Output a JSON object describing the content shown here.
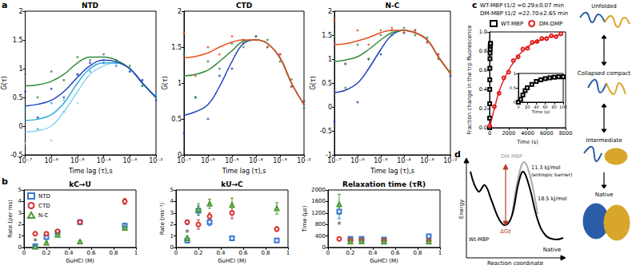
{
  "chart_data": [
    {
      "type": "line",
      "title": "NTD",
      "x_label": "Time lag (τ),s",
      "y_label": "G(τ)",
      "log": "x",
      "x": [
        1e-07,
        3e-07,
        1e-06,
        3e-06,
        1e-05,
        3e-05,
        0.0001,
        0.0003,
        0.001,
        0.003,
        0.01
      ],
      "xlim": [
        1e-07,
        0.01
      ],
      "xticks": [
        {
          "value": 1e-07,
          "label": "10⁻⁷"
        },
        {
          "value": 1e-06,
          "label": "10⁻⁶"
        },
        {
          "value": 1e-05,
          "label": "10⁻⁵"
        },
        {
          "value": 0.0001,
          "label": "10⁻⁴"
        },
        {
          "value": 0.001,
          "label": "10⁻³"
        },
        {
          "value": 0.01,
          "label": "10⁻²"
        }
      ],
      "ylim": [
        -0.5,
        2
      ],
      "yticks": [
        -0.5,
        0,
        0.5,
        1,
        1.5,
        2
      ],
      "vlines": [
        1e-05,
        0.001
      ],
      "series": [
        {
          "color": "#8fd3f0",
          "marker": "dot",
          "values": [
            -0.3,
            0.15,
            -0.25,
            0.45,
            0.4,
            1.0,
            1.1,
            1.05,
            0.95,
            0.8,
            0.45
          ],
          "fit": [
            -0.1,
            -0.08,
            0.0,
            0.25,
            0.6,
            0.9,
            1.05,
            1.1,
            1.0,
            0.75,
            0.5
          ]
        },
        {
          "color": "#2fa9dc",
          "marker": "dot",
          "values": [
            0.3,
            -0.05,
            0.4,
            0.25,
            0.9,
            0.95,
            1.15,
            1.05,
            1.0,
            0.7,
            0.55
          ],
          "fit": [
            0.1,
            0.12,
            0.2,
            0.4,
            0.75,
            1.0,
            1.1,
            1.1,
            1.0,
            0.75,
            0.5
          ]
        },
        {
          "color": "#2e8b3a",
          "marker": "dot",
          "values": [
            0.9,
            0.5,
            0.95,
            0.8,
            1.2,
            1.15,
            1.25,
            1.1,
            1.05,
            0.7,
            0.5
          ],
          "fit": [
            0.7,
            0.72,
            0.78,
            0.9,
            1.1,
            1.2,
            1.2,
            1.15,
            1.0,
            0.75,
            0.5
          ]
        },
        {
          "color": "#1f3fbf",
          "marker": "dot",
          "values": [
            0.6,
            0.15,
            0.65,
            0.5,
            0.9,
            1.1,
            1.1,
            1.15,
            0.95,
            0.8,
            0.45
          ],
          "fit": [
            0.35,
            0.38,
            0.45,
            0.6,
            0.85,
            1.05,
            1.15,
            1.12,
            1.0,
            0.75,
            0.5
          ]
        }
      ]
    },
    {
      "type": "line",
      "title": "CTD",
      "x_label": "Time lag (τ),s",
      "y_label": "G(τ)",
      "log": "x",
      "x": [
        1e-07,
        3e-07,
        1e-06,
        3e-06,
        1e-05,
        3e-05,
        0.0001,
        0.0003,
        0.001,
        0.003,
        0.01
      ],
      "xlim": [
        1e-07,
        0.01
      ],
      "xticks": [
        {
          "value": 1e-07,
          "label": "10⁻⁷"
        },
        {
          "value": 1e-06,
          "label": "10⁻⁶"
        },
        {
          "value": 1e-05,
          "label": "10⁻⁵"
        },
        {
          "value": 0.0001,
          "label": "10⁻⁴"
        },
        {
          "value": 0.001,
          "label": "10⁻³"
        },
        {
          "value": 0.01,
          "label": "10⁻²"
        }
      ],
      "ylim": [
        0,
        2
      ],
      "yticks": [
        0,
        0.5,
        1,
        1.5,
        2
      ],
      "vlines": [
        1e-05,
        0.001
      ],
      "series": [
        {
          "color": "#1f3fbf",
          "marker": "dot",
          "values": [
            0.3,
            0.8,
            0.5,
            1.1,
            1.2,
            1.6,
            1.65,
            1.5,
            1.4,
            0.95,
            0.75
          ],
          "fit": [
            0.55,
            0.6,
            0.7,
            0.95,
            1.3,
            1.55,
            1.6,
            1.55,
            1.35,
            1.0,
            0.7
          ]
        },
        {
          "color": "#2e8b3a",
          "marker": "dot",
          "values": [
            1.4,
            0.8,
            1.3,
            1.2,
            1.55,
            1.5,
            1.65,
            1.6,
            1.3,
            1.05,
            0.65
          ],
          "fit": [
            1.1,
            1.12,
            1.18,
            1.3,
            1.45,
            1.58,
            1.6,
            1.55,
            1.35,
            1.0,
            0.7
          ]
        },
        {
          "color": "#e8501c",
          "marker": "dot",
          "values": [
            1.7,
            1.1,
            1.5,
            1.4,
            1.65,
            1.55,
            1.6,
            1.5,
            1.4,
            0.95,
            0.7
          ],
          "fit": [
            1.35,
            1.37,
            1.42,
            1.5,
            1.57,
            1.6,
            1.6,
            1.55,
            1.35,
            1.0,
            0.7
          ]
        }
      ]
    },
    {
      "type": "line",
      "title": "N-C",
      "x_label": "Time lag (τ),s",
      "y_label": "G(τ)",
      "log": "x",
      "x": [
        1e-07,
        3e-07,
        1e-06,
        3e-06,
        1e-05,
        3e-05,
        0.0001,
        0.0003,
        0.001,
        0.003,
        0.01
      ],
      "xlim": [
        1e-07,
        0.01
      ],
      "xticks": [
        {
          "value": 1e-07,
          "label": "10⁻⁷"
        },
        {
          "value": 1e-06,
          "label": "10⁻⁶"
        },
        {
          "value": 1e-05,
          "label": "10⁻⁵"
        },
        {
          "value": 0.0001,
          "label": "10⁻⁴"
        },
        {
          "value": 0.001,
          "label": "10⁻³"
        },
        {
          "value": 0.01,
          "label": "10⁻²"
        }
      ],
      "ylim": [
        -1,
        2
      ],
      "yticks": [
        -1,
        -0.5,
        0,
        0.5,
        1,
        1.5,
        2
      ],
      "vlines": [
        1e-05,
        0.001
      ],
      "series": [
        {
          "color": "#1f3fbf",
          "marker": "dot",
          "values": [
            -0.3,
            0.9,
            0.1,
            1.0,
            1.1,
            1.6,
            1.55,
            1.6,
            1.35,
            1.1,
            0.65
          ],
          "fit": [
            0.3,
            0.35,
            0.5,
            0.8,
            1.2,
            1.5,
            1.6,
            1.55,
            1.4,
            1.05,
            0.7
          ]
        },
        {
          "color": "#2e8b3a",
          "marker": "dot",
          "values": [
            1.5,
            0.4,
            1.3,
            1.0,
            1.5,
            1.5,
            1.65,
            1.5,
            1.45,
            1.0,
            0.75
          ],
          "fit": [
            0.95,
            0.98,
            1.05,
            1.2,
            1.4,
            1.55,
            1.6,
            1.55,
            1.4,
            1.05,
            0.7
          ]
        },
        {
          "color": "#e8501c",
          "marker": "dot",
          "values": [
            1.8,
            0.9,
            1.6,
            1.3,
            1.6,
            1.65,
            1.55,
            1.6,
            1.35,
            1.1,
            0.7
          ],
          "fit": [
            1.3,
            1.32,
            1.38,
            1.45,
            1.55,
            1.6,
            1.6,
            1.55,
            1.4,
            1.05,
            0.7
          ]
        }
      ]
    },
    {
      "type": "scatter",
      "title": "kC→U",
      "x_label": "GuHCl (M)",
      "y_label": "Rate (per ms)",
      "x": [
        0.1,
        0.2,
        0.3,
        0.5,
        0.9
      ],
      "xlim": [
        0,
        1
      ],
      "xticks": [
        0,
        0.2,
        0.4,
        0.6,
        0.8,
        1
      ],
      "ylim": [
        0,
        5
      ],
      "yticks": [
        0,
        1,
        2,
        3,
        4,
        5
      ],
      "legend": "upper left",
      "series": [
        {
          "name": "NTD",
          "color": "#3a78d0",
          "marker": "open square",
          "values": [
            0.1,
            0.9,
            1.3,
            2.2,
            1.9
          ],
          "errors": [
            0.05,
            0.2,
            0.15,
            0.2,
            0.2
          ]
        },
        {
          "name": "CTD",
          "color": "#d83030",
          "marker": "open circle",
          "values": [
            1.2,
            1.2,
            1.4,
            2.2,
            4.0
          ],
          "errors": [
            0.1,
            0.1,
            0.15,
            0.2,
            0.25
          ]
        },
        {
          "name": "N-C",
          "color": "#4a9a30",
          "marker": "open triangle",
          "values": [
            0.05,
            0.4,
            1.1,
            0.5,
            1.7
          ],
          "errors": [
            0.05,
            0.1,
            0.15,
            0.1,
            0.2
          ]
        }
      ],
      "annotations": [
        {
          "text": "*",
          "x": 0.1,
          "y": 0.5
        }
      ]
    },
    {
      "type": "scatter",
      "title": "kU→C",
      "x_label": "GuHCl (M)",
      "y_label": "Rate (ms⁻¹)",
      "x": [
        0.1,
        0.2,
        0.3,
        0.5,
        0.9
      ],
      "xlim": [
        0,
        1
      ],
      "xticks": [
        0,
        0.2,
        0.4,
        0.6,
        0.8,
        1
      ],
      "ylim": [
        0,
        5
      ],
      "yticks": [
        0,
        1,
        2,
        3,
        4,
        5
      ],
      "series": [
        {
          "color": "#3a78d0",
          "marker": "open square",
          "values": [
            0.6,
            3.2,
            2.2,
            0.8,
            0.6
          ],
          "errors": [
            0.2,
            0.4,
            0.3,
            0.1,
            0.1
          ]
        },
        {
          "color": "#d83030",
          "marker": "open circle",
          "values": [
            2.2,
            2.0,
            2.7,
            3.0,
            1.6
          ],
          "errors": [
            0.2,
            0.4,
            0.3,
            0.5,
            0.2
          ]
        },
        {
          "color": "#4a9a30",
          "marker": "open triangle",
          "values": [
            0.8,
            3.3,
            3.8,
            3.7,
            3.4
          ],
          "errors": [
            0.2,
            0.5,
            0.4,
            0.6,
            0.5
          ]
        }
      ],
      "annotations": [
        {
          "text": "*",
          "x": 0.1,
          "y": 1.3
        }
      ]
    },
    {
      "type": "scatter",
      "title": "Relaxation time (τR)",
      "x_label": "GuHCl (M)",
      "y_label": "Time (µs)",
      "x": [
        0.1,
        0.2,
        0.3,
        0.5,
        0.9
      ],
      "xlim": [
        0,
        1
      ],
      "xticks": [
        0,
        0.2,
        0.4,
        0.6,
        0.8,
        1
      ],
      "ylim": [
        0,
        2000
      ],
      "yticks": [
        0,
        400,
        800,
        1200,
        1600,
        2000
      ],
      "series": [
        {
          "color": "#3a78d0",
          "marker": "open square",
          "values": [
            1250,
            300,
            300,
            280,
            390
          ],
          "errors": [
            250,
            50,
            50,
            40,
            50
          ]
        },
        {
          "color": "#d83030",
          "marker": "open circle",
          "values": [
            300,
            250,
            250,
            240,
            230
          ],
          "errors": [
            40,
            30,
            30,
            30,
            30
          ]
        },
        {
          "color": "#4a9a30",
          "marker": "open triangle",
          "values": [
            1500,
            200,
            210,
            200,
            200
          ],
          "errors": [
            350,
            30,
            30,
            30,
            30
          ]
        }
      ],
      "annotations": [
        {
          "text": "*",
          "x": 0.1,
          "y": 800
        }
      ]
    },
    {
      "type": "scatter",
      "x_label": "Time (s)",
      "y_label": "Fraction change in the trp fluorescence",
      "xlim": [
        0,
        8000
      ],
      "xticks": [
        0,
        2000,
        4000,
        6000,
        8000
      ],
      "ylim": [
        0,
        1
      ],
      "yticks": [
        {
          "value": 0,
          "label": "0.0"
        },
        0.2,
        0.4,
        0.6,
        0.8,
        {
          "value": 1,
          "label": "1.0"
        }
      ],
      "legend": "top",
      "annotations": [
        "WT-MBP t1/2 =0.29±0.07 min",
        "DM-MBP t1/2 =22.70±2.65 min"
      ],
      "series": [
        {
          "name": "WT-MBP",
          "color": "#000000",
          "marker": "open square",
          "x": [
            0,
            5,
            10,
            15,
            20,
            30,
            40,
            50,
            60,
            70,
            80,
            90,
            100
          ],
          "values": [
            0,
            0.1,
            0.25,
            0.4,
            0.5,
            0.62,
            0.72,
            0.78,
            0.82,
            0.85,
            0.87,
            0.88,
            0.88
          ]
        },
        {
          "name": "DM-DMP",
          "color": "#e02020",
          "marker": "open circle",
          "x": [
            0,
            500,
            1000,
            1500,
            2000,
            2500,
            3000,
            3500,
            4000,
            4500,
            5000,
            5500,
            6000,
            6500,
            7000,
            7500
          ],
          "values": [
            0.02,
            0.22,
            0.36,
            0.52,
            0.58,
            0.7,
            0.74,
            0.82,
            0.83,
            0.89,
            0.9,
            0.93,
            0.93,
            0.96,
            0.95,
            0.98
          ],
          "fit": [
            0,
            0.2,
            0.38,
            0.5,
            0.6,
            0.68,
            0.75,
            0.8,
            0.84,
            0.88,
            0.9,
            0.92,
            0.94,
            0.95,
            0.96,
            0.97
          ]
        }
      ]
    },
    {
      "type": "scatter",
      "x_label": "Time (s)",
      "xlim": [
        0,
        100
      ],
      "xticks": [
        0,
        20,
        40,
        60,
        80,
        100
      ],
      "ylim": [
        0,
        1
      ],
      "yticks": [
        0,
        0.5,
        1
      ],
      "series": [
        {
          "color": "#000000",
          "marker": "open square",
          "x": [
            0,
            5,
            10,
            15,
            20,
            30,
            40,
            50,
            60,
            70,
            80,
            90,
            100
          ],
          "values": [
            0,
            0.1,
            0.25,
            0.4,
            0.5,
            0.62,
            0.72,
            0.78,
            0.82,
            0.85,
            0.87,
            0.88,
            0.88
          ]
        }
      ]
    }
  ],
  "panel_labels": [
    "a",
    "b",
    "c",
    "d"
  ],
  "energy_diagram": {
    "x_label": "Reaction coordinate",
    "y_label": "Energy",
    "dm_label": "DM-MBP",
    "wt_label": "Wt-MBP",
    "entropic_barrier": "11.3 kJ/mol",
    "entropic_note": "(entropic barrier)",
    "barrier": "18.5 kJ/mol",
    "delta_g": "ΔG‡",
    "end_state": "Native"
  },
  "pathway": {
    "states": [
      "Unfolded",
      "Collapsed compact",
      "Intermediate",
      "Native"
    ]
  }
}
